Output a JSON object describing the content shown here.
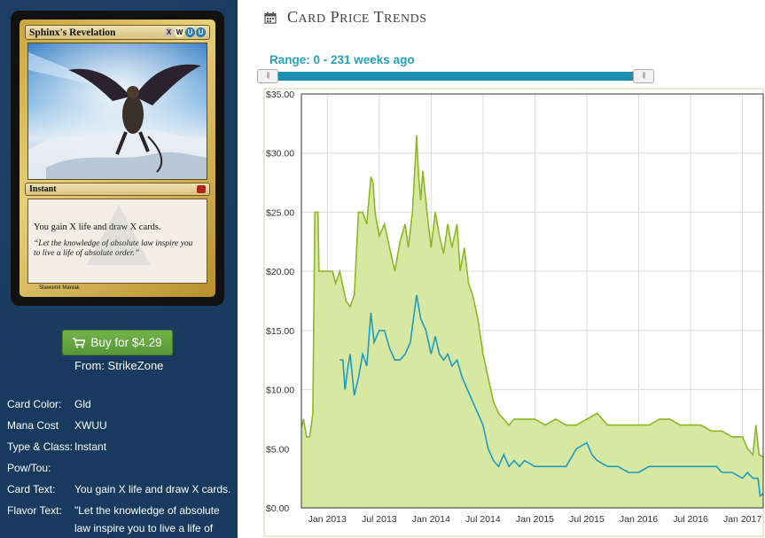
{
  "card": {
    "name": "Sphinx's Revelation",
    "mana_symbols": [
      {
        "symbol": "X",
        "class": "m-x"
      },
      {
        "symbol": "W",
        "class": "m-w"
      },
      {
        "symbol": "U",
        "class": "m-u"
      },
      {
        "symbol": "U",
        "class": "m-u"
      }
    ],
    "type_line": "Instant",
    "rules_text": "You gain X life and draw X cards.",
    "flavor_text": "“Let the knowledge of absolute law inspire you to live a life of absolute order.”",
    "artist": "Slawomir Maniak"
  },
  "buy": {
    "label": "Buy for $4.29",
    "from": "From: StrikeZone",
    "icon": "shopping-cart-icon"
  },
  "details": [
    {
      "label": "Card Color:",
      "value": "Gld"
    },
    {
      "label": "Mana Cost",
      "value": "XWUU"
    },
    {
      "label": "Type & Class:",
      "value": "Instant"
    },
    {
      "label": "Pow/Tou:",
      "value": ""
    },
    {
      "label": "Card Text:",
      "value": "You gain X life and draw X cards."
    },
    {
      "label": "Flavor Text:",
      "value": "\"Let the knowledge of absolute law inspire you to live a life of"
    }
  ],
  "panel": {
    "title": "Card Price Trends",
    "icon": "calendar-icon",
    "range_label": "Range: 0 - 231 weeks ago",
    "slider_handle_glyph": "|||",
    "accent_color": "#2aa3b4"
  },
  "chart_data": {
    "type": "area",
    "ylim": [
      0,
      35
    ],
    "y_ticks": [
      "$0.00",
      "$5.00",
      "$10.00",
      "$15.00",
      "$20.00",
      "$25.00",
      "$30.00",
      "$35.00"
    ],
    "x_ticks": [
      "Jan 2013",
      "Jul 2013",
      "Jan 2014",
      "Jul 2014",
      "Jan 2015",
      "Jul 2015",
      "Jan 2016",
      "Jul 2016",
      "Jan 2017"
    ],
    "x_tick_positions": [
      2013.0,
      2013.5,
      2014.0,
      2014.5,
      2015.0,
      2015.5,
      2016.0,
      2016.5,
      2017.0
    ],
    "xlim": [
      2012.75,
      2017.2
    ],
    "grid": true,
    "series": [
      {
        "color": "#8cb825",
        "fill": "#d6e8a2",
        "points": [
          [
            2012.75,
            6.8
          ],
          [
            2012.77,
            7.5
          ],
          [
            2012.8,
            6.0
          ],
          [
            2012.83,
            6.0
          ],
          [
            2012.86,
            8.0
          ],
          [
            2012.88,
            25.0
          ],
          [
            2012.91,
            25.0
          ],
          [
            2012.92,
            20.0
          ],
          [
            2012.98,
            20.0
          ],
          [
            2013.0,
            20.0
          ],
          [
            2013.05,
            20.0
          ],
          [
            2013.08,
            19.0
          ],
          [
            2013.12,
            20.0
          ],
          [
            2013.18,
            17.5
          ],
          [
            2013.22,
            17.0
          ],
          [
            2013.26,
            18.0
          ],
          [
            2013.3,
            25.0
          ],
          [
            2013.34,
            25.0
          ],
          [
            2013.38,
            24.0
          ],
          [
            2013.42,
            28.0
          ],
          [
            2013.44,
            27.5
          ],
          [
            2013.46,
            25.0
          ],
          [
            2013.5,
            23.0
          ],
          [
            2013.55,
            24.0
          ],
          [
            2013.6,
            22.0
          ],
          [
            2013.65,
            20.0
          ],
          [
            2013.7,
            22.5
          ],
          [
            2013.75,
            24.0
          ],
          [
            2013.78,
            22.0
          ],
          [
            2013.82,
            25.0
          ],
          [
            2013.86,
            31.5
          ],
          [
            2013.88,
            28.0
          ],
          [
            2013.9,
            26.0
          ],
          [
            2013.92,
            28.5
          ],
          [
            2013.96,
            25.0
          ],
          [
            2014.0,
            22.0
          ],
          [
            2014.04,
            25.0
          ],
          [
            2014.08,
            23.0
          ],
          [
            2014.12,
            21.5
          ],
          [
            2014.16,
            24.0
          ],
          [
            2014.2,
            22.0
          ],
          [
            2014.25,
            24.0
          ],
          [
            2014.28,
            20.0
          ],
          [
            2014.32,
            22.0
          ],
          [
            2014.36,
            19.0
          ],
          [
            2014.4,
            18.0
          ],
          [
            2014.45,
            16.0
          ],
          [
            2014.5,
            13.0
          ],
          [
            2014.55,
            11.0
          ],
          [
            2014.6,
            9.0
          ],
          [
            2014.65,
            8.0
          ],
          [
            2014.7,
            7.5
          ],
          [
            2014.75,
            7.0
          ],
          [
            2014.8,
            7.5
          ],
          [
            2014.9,
            7.5
          ],
          [
            2015.0,
            7.5
          ],
          [
            2015.1,
            7.0
          ],
          [
            2015.2,
            7.5
          ],
          [
            2015.3,
            7.0
          ],
          [
            2015.4,
            7.0
          ],
          [
            2015.5,
            7.5
          ],
          [
            2015.6,
            8.0
          ],
          [
            2015.7,
            7.0
          ],
          [
            2015.8,
            7.0
          ],
          [
            2015.9,
            7.0
          ],
          [
            2016.0,
            7.0
          ],
          [
            2016.1,
            7.0
          ],
          [
            2016.2,
            7.5
          ],
          [
            2016.3,
            7.5
          ],
          [
            2016.4,
            7.0
          ],
          [
            2016.5,
            7.0
          ],
          [
            2016.6,
            7.0
          ],
          [
            2016.7,
            6.5
          ],
          [
            2016.8,
            6.5
          ],
          [
            2016.9,
            6.0
          ],
          [
            2017.0,
            6.0
          ],
          [
            2017.05,
            5.0
          ],
          [
            2017.1,
            4.5
          ],
          [
            2017.13,
            7.0
          ],
          [
            2017.16,
            4.5
          ],
          [
            2017.2,
            4.3
          ]
        ]
      },
      {
        "color": "#1f9bc0",
        "points": [
          [
            2013.12,
            12.5
          ],
          [
            2013.15,
            12.5
          ],
          [
            2013.17,
            10.0
          ],
          [
            2013.2,
            12.0
          ],
          [
            2013.22,
            13.0
          ],
          [
            2013.26,
            9.5
          ],
          [
            2013.3,
            11.0
          ],
          [
            2013.34,
            13.0
          ],
          [
            2013.38,
            12.0
          ],
          [
            2013.42,
            16.5
          ],
          [
            2013.45,
            14.0
          ],
          [
            2013.5,
            15.0
          ],
          [
            2013.55,
            15.0
          ],
          [
            2013.6,
            13.5
          ],
          [
            2013.65,
            12.5
          ],
          [
            2013.7,
            12.5
          ],
          [
            2013.75,
            13.0
          ],
          [
            2013.8,
            14.0
          ],
          [
            2013.86,
            18.0
          ],
          [
            2013.9,
            16.0
          ],
          [
            2013.95,
            15.0
          ],
          [
            2014.0,
            13.0
          ],
          [
            2014.04,
            14.5
          ],
          [
            2014.08,
            13.0
          ],
          [
            2014.12,
            12.5
          ],
          [
            2014.16,
            13.0
          ],
          [
            2014.2,
            12.0
          ],
          [
            2014.25,
            12.5
          ],
          [
            2014.3,
            11.0
          ],
          [
            2014.35,
            10.0
          ],
          [
            2014.4,
            9.0
          ],
          [
            2014.45,
            8.0
          ],
          [
            2014.5,
            7.0
          ],
          [
            2014.55,
            5.0
          ],
          [
            2014.6,
            4.0
          ],
          [
            2014.65,
            3.5
          ],
          [
            2014.7,
            4.5
          ],
          [
            2014.75,
            3.5
          ],
          [
            2014.8,
            4.0
          ],
          [
            2014.85,
            3.5
          ],
          [
            2014.9,
            4.0
          ],
          [
            2015.0,
            3.5
          ],
          [
            2015.1,
            3.5
          ],
          [
            2015.2,
            3.5
          ],
          [
            2015.3,
            3.5
          ],
          [
            2015.4,
            5.0
          ],
          [
            2015.5,
            5.5
          ],
          [
            2015.55,
            4.5
          ],
          [
            2015.6,
            4.0
          ],
          [
            2015.7,
            3.5
          ],
          [
            2015.8,
            3.5
          ],
          [
            2015.9,
            3.0
          ],
          [
            2016.0,
            3.0
          ],
          [
            2016.1,
            3.5
          ],
          [
            2016.2,
            3.5
          ],
          [
            2016.3,
            3.5
          ],
          [
            2016.4,
            3.5
          ],
          [
            2016.5,
            3.5
          ],
          [
            2016.6,
            3.5
          ],
          [
            2016.7,
            3.5
          ],
          [
            2016.75,
            3.5
          ],
          [
            2016.8,
            3.0
          ],
          [
            2016.85,
            3.0
          ],
          [
            2016.9,
            3.0
          ],
          [
            2017.0,
            2.5
          ],
          [
            2017.05,
            3.0
          ],
          [
            2017.1,
            2.5
          ],
          [
            2017.15,
            2.5
          ],
          [
            2017.17,
            1.0
          ],
          [
            2017.2,
            1.2
          ]
        ]
      }
    ]
  }
}
